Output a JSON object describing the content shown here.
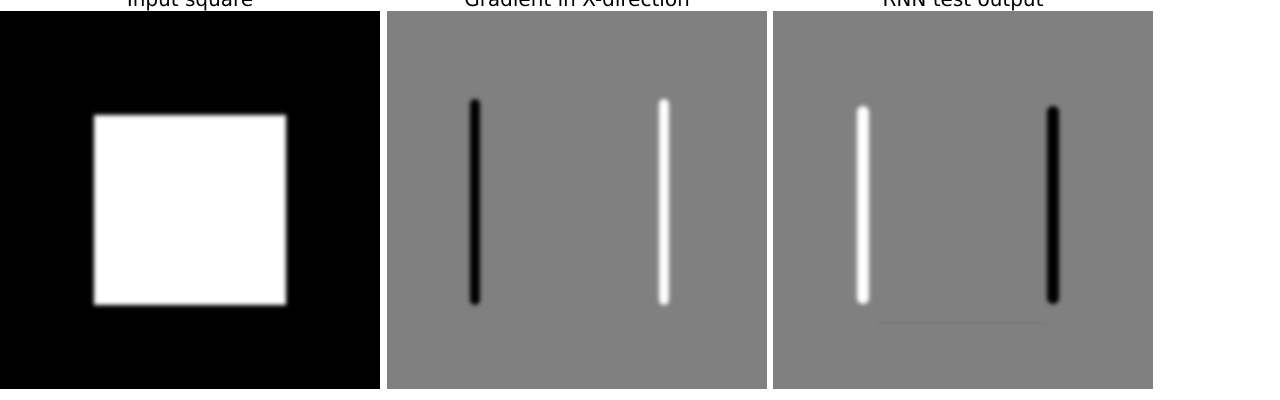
{
  "panels": [
    {
      "title": "Input square"
    },
    {
      "title": "Gradient in X-direction"
    },
    {
      "title": "RNN test output"
    }
  ],
  "colors": {
    "background": "#ffffff",
    "panel_gray": "#808080",
    "black": "#000000",
    "white": "#ffffff"
  }
}
